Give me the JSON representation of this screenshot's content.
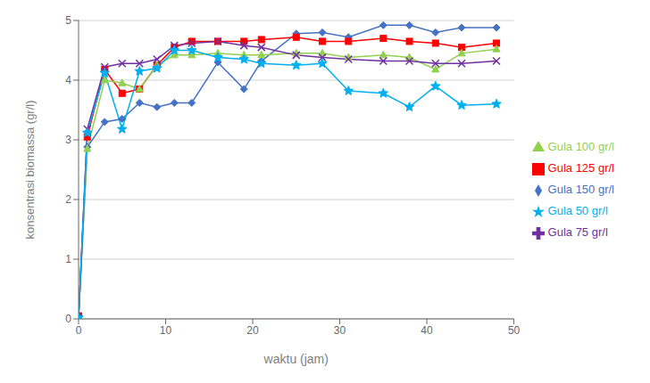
{
  "chart_data": {
    "type": "line",
    "xlabel": "waktu (jam)",
    "ylabel": "konsentrasi biomassa (gr/l)",
    "x": [
      0,
      1,
      3,
      5,
      7,
      9,
      11,
      13,
      16,
      19,
      21,
      25,
      28,
      31,
      35,
      38,
      41,
      44,
      48
    ],
    "xlim": [
      0,
      50
    ],
    "ylim": [
      0,
      5
    ],
    "xticks": [
      0,
      10,
      20,
      30,
      40,
      50
    ],
    "yticks": [
      0,
      1,
      2,
      3,
      4,
      5
    ],
    "grid": true,
    "legend": "right",
    "series": [
      {
        "name": "Gula 150 gr/l",
        "color": "#4472C4",
        "marker": "diamond",
        "values": [
          0.05,
          2.88,
          3.3,
          3.35,
          3.62,
          3.55,
          3.62,
          3.62,
          4.3,
          3.85,
          4.32,
          4.78,
          4.8,
          4.72,
          4.92,
          4.92,
          4.8,
          4.88,
          4.88
        ]
      },
      {
        "name": "Gula 125 gr/l",
        "color": "#FF0000",
        "marker": "square",
        "values": [
          0.05,
          3.05,
          4.18,
          3.78,
          3.85,
          4.25,
          4.55,
          4.65,
          4.65,
          4.65,
          4.68,
          4.72,
          4.65,
          4.65,
          4.7,
          4.65,
          4.62,
          4.55,
          4.62
        ]
      },
      {
        "name": "Gula 100 gr/l",
        "color": "#92D050",
        "marker": "triangle",
        "values": [
          0.02,
          2.85,
          4.0,
          3.95,
          3.85,
          4.25,
          4.42,
          4.42,
          4.45,
          4.42,
          4.42,
          4.45,
          4.45,
          4.38,
          4.42,
          4.38,
          4.18,
          4.45,
          4.52
        ]
      },
      {
        "name": "Gula 75 gr/l",
        "color": "#7030A0",
        "marker": "x",
        "values": [
          0.02,
          3.18,
          4.22,
          4.28,
          4.28,
          4.35,
          4.58,
          4.62,
          4.65,
          4.58,
          4.55,
          4.42,
          4.38,
          4.35,
          4.32,
          4.32,
          4.28,
          4.28,
          4.32
        ]
      },
      {
        "name": "Gula 50 gr/l",
        "color": "#00B0F0",
        "marker": "star",
        "values": [
          0.02,
          3.12,
          4.12,
          3.18,
          4.15,
          4.2,
          4.5,
          4.5,
          4.38,
          4.35,
          4.28,
          4.25,
          4.28,
          3.82,
          3.78,
          3.55,
          3.9,
          3.58,
          3.6
        ]
      }
    ]
  }
}
